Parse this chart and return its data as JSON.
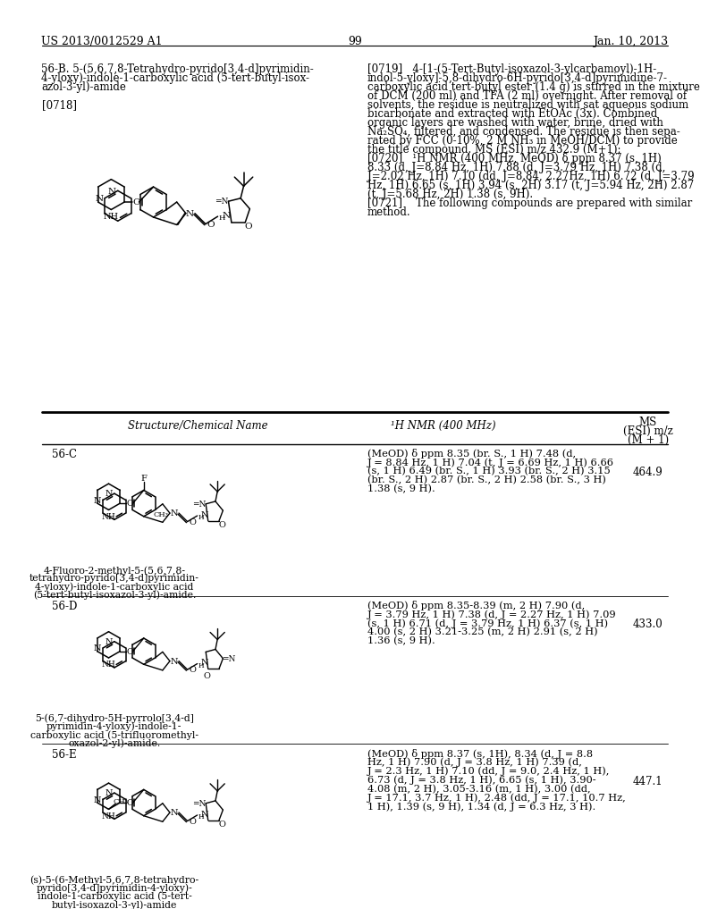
{
  "page_header_left": "US 2013/0012529 A1",
  "page_header_right": "Jan. 10, 2013",
  "page_number": "99",
  "section_label_1": "56-B. 5-(5,6,7,8-Tetrahydro-pyrido[3,4-d]pyrimidin-",
  "section_label_2": "4-yloxy)-indole-1-carboxylic acid (5-tert-butyl-isox-",
  "section_label_3": "azol-3-yl)-amide",
  "para_0718": "[0718]",
  "para_0719_l1": "[0719]   4-[1-(5-Tert-Butyl-isoxazol-3-ylcarbamoyl)-1H-",
  "para_0719_l2": "indol-5-yloxy]-5,8-dihydro-6H-pyrido[3,4-d]pyrimidine-7-",
  "para_0719_l3": "carboxylic acid tert-butyl ester (1.4 g) is stirred in the mixture",
  "para_0719_l4": "of DCM (200 ml) and TFA (2 ml) overnight. After removal of",
  "para_0719_l5": "solvents, the residue is neutralized with sat aqueous sodium",
  "para_0719_l6": "bicarbonate and extracted with EtOAc (3x). Combined",
  "para_0719_l7": "organic layers are washed with water, brine, dried with",
  "para_0719_l8": "Na₂SO₄, filtered, and condensed. The residue is then sepa-",
  "para_0719_l9": "rated by FCC (0-10%, 2 M NH₃ in MeOH/DCM) to provide",
  "para_0719_l10": "the title compound. MS (ESI) m/z 432.9 (M+1);",
  "para_0720_l1": "[0720]   ¹H NMR (400 MHz, MeOD) δ ppm 8.37 (s, 1H)",
  "para_0720_l2": "8.33 (d, J=8.84 Hz, 1H) 7.88 (d, J=3.79 Hz, 1H) 7.38 (d,",
  "para_0720_l3": "J=2.02 Hz, 1H) 7.10 (dd, J=8.84, 2.27Hz, 1H) 6.72 (d, J=3.79",
  "para_0720_l4": "Hz, 1H) 6.65 (s, 1H) 3.94 (s, 2H) 3.17 (t, J=5.94 Hz, 2H) 2.87",
  "para_0720_l5": "(t, J=5.68 Hz, 2H) 1.38 (s, 9H).",
  "para_0721_l1": "[0721]    The following compounds are prepared with similar",
  "para_0721_l2": "method.",
  "table_header_col1": "Structure/Chemical Name",
  "table_header_col2": "¹H NMR (400 MHz)",
  "table_header_ms1": "MS",
  "table_header_ms2": "(ESI) m/z",
  "table_header_ms3": "(M + 1)",
  "row1_id": "56-C",
  "row1_nmr_l1": "(MeOD) δ ppm 8.35 (br. S., 1 H) 7.48 (d,",
  "row1_nmr_l2": "J = 8.84 Hz, 1 H) 7.04 (t, J = 6.69 Hz, 1 H) 6.66",
  "row1_nmr_l3": "(s, 1 H) 6.49 (br. S., 1 H) 3.93 (br. S., 2 H) 3.15",
  "row1_nmr_l4": "(br. S., 2 H) 2.87 (br. S., 2 H) 2.58 (br. S., 3 H)",
  "row1_nmr_l5": "1.38 (s, 9 H).",
  "row1_ms": "464.9",
  "row1_chem_l1": "4-Fluoro-2-methyl-5-(5,6,7,8-",
  "row1_chem_l2": "tetrahydro-pyrido[3,4-d]pyrimidin-",
  "row1_chem_l3": "4-yloxy)-indole-1-carboxylic acid",
  "row1_chem_l4": "(5-tert-butyl-isoxazol-3-yl)-amide.",
  "row2_id": "56-D",
  "row2_nmr_l1": "(MeOD) δ ppm 8.35-8.39 (m, 2 H) 7.90 (d,",
  "row2_nmr_l2": "J = 3.79 Hz, 1 H) 7.38 (d, J = 2.27 Hz, 1 H) 7.09",
  "row2_nmr_l3": "(s, 1 H) 6.71 (d, J = 3.79 Hz, 1 H) 6.37 (s, 1 H)",
  "row2_nmr_l4": "4.00 (s, 2 H) 3.21-3.25 (m, 2 H) 2.91 (s, 2 H)",
  "row2_nmr_l5": "1.36 (s, 9 H).",
  "row2_ms": "433.0",
  "row2_chem_l1": "5-(6,7-dihydro-5H-pyrrolo[3,4-d]",
  "row2_chem_l2": "pyrimidin-4-yloxy)-indole-1-",
  "row2_chem_l3": "carboxylic acid (5-trifluoromethyl-",
  "row2_chem_l4": "oxazol-2-yl)-amide.",
  "row3_id": "56-E",
  "row3_nmr_l1": "(MeOD) δ ppm 8.37 (s, 1H), 8.34 (d, J = 8.8",
  "row3_nmr_l2": "Hz, 1 H) 7.90 (d, J = 3.8 Hz, 1 H) 7.39 (d,",
  "row3_nmr_l3": "J = 2.3 Hz, 1 H) 7.10 (dd, J = 9.0, 2.4 Hz, 1 H),",
  "row3_nmr_l4": "6.73 (d, J = 3.8 Hz, 1 H), 6.65 (s, 1 H), 3.90-",
  "row3_nmr_l5": "4.08 (m, 2 H), 3.05-3.16 (m, 1 H), 3.00 (dd,",
  "row3_nmr_l6": "J = 17.1, 3.7 Hz, 1 H), 2.48 (dd, J = 17.1, 10.7 Hz,",
  "row3_nmr_l7": "1 H), 1.39 (s, 9 H), 1.34 (d, J = 6.3 Hz, 3 H).",
  "row3_ms": "447.1",
  "row3_chem_l1": "(s)-5-(6-Methyl-5,6,7,8-tetrahydro-",
  "row3_chem_l2": "pyrido[3,4-d]pyrimidin-4-yloxy)-",
  "row3_chem_l3": "indole-1-carboxylic acid (5-tert-",
  "row3_chem_l4": "butyl-isoxazol-3-yl)-amide",
  "bg_color": "#ffffff",
  "text_color": "#000000"
}
